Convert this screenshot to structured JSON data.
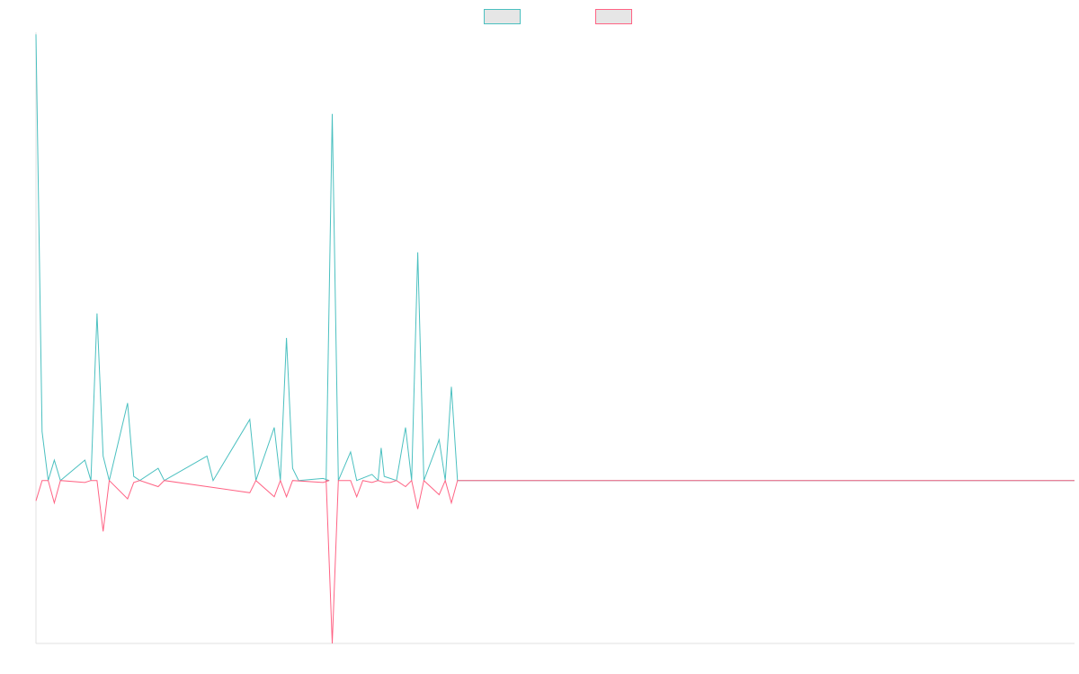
{
  "chart_data": {
    "type": "line",
    "title": "",
    "xlabel": "",
    "ylabel": "",
    "grid": false,
    "legend_placement": "top-center",
    "xlim": [
      0,
      170
    ],
    "ylim": [
      -0.4,
      1.1
    ],
    "colors": {
      "axis": "#e0e0e0",
      "swatch_fill": "#e6e6e6"
    },
    "series": [
      {
        "color": "#4bc0c0",
        "points": [
          [
            0,
            1.095
          ],
          [
            1,
            0.12
          ],
          [
            2,
            0
          ],
          [
            3,
            0.05
          ],
          [
            4,
            0
          ],
          [
            8,
            0.05
          ],
          [
            9,
            0
          ],
          [
            10,
            0.41
          ],
          [
            11,
            0.06
          ],
          [
            12,
            0
          ],
          [
            15,
            0.19
          ],
          [
            16,
            0.01
          ],
          [
            17,
            0
          ],
          [
            20,
            0.03
          ],
          [
            21,
            0
          ],
          [
            28,
            0.06
          ],
          [
            29,
            0
          ],
          [
            35,
            0.15
          ],
          [
            36,
            0
          ],
          [
            39,
            0.13
          ],
          [
            40,
            0
          ],
          [
            41,
            0.35
          ],
          [
            42,
            0.03
          ],
          [
            43,
            0
          ],
          [
            47,
            0.005
          ],
          [
            48,
            0
          ],
          [
            47.5,
            0
          ],
          [
            48.5,
            0.9
          ],
          [
            49.5,
            0
          ],
          [
            51.5,
            0.07
          ],
          [
            52.5,
            0
          ],
          [
            55,
            0.015
          ],
          [
            56,
            0
          ],
          [
            56.5,
            0.08
          ],
          [
            57,
            0.01
          ],
          [
            58,
            0.005
          ],
          [
            59,
            0
          ],
          [
            60.5,
            0.13
          ],
          [
            61.5,
            0
          ],
          [
            62.5,
            0.56
          ],
          [
            63.5,
            0
          ],
          [
            66,
            0.1
          ],
          [
            67,
            0
          ],
          [
            68,
            0.23
          ],
          [
            69,
            0
          ],
          [
            170,
            0
          ]
        ]
      },
      {
        "color": "#ff6384",
        "points": [
          [
            0,
            -0.05
          ],
          [
            1,
            0
          ],
          [
            2,
            0
          ],
          [
            3,
            -0.055
          ],
          [
            4,
            0
          ],
          [
            8,
            -0.005
          ],
          [
            9,
            0
          ],
          [
            10,
            0
          ],
          [
            11,
            -0.125
          ],
          [
            12,
            0
          ],
          [
            15,
            -0.045
          ],
          [
            16,
            -0.005
          ],
          [
            17,
            0
          ],
          [
            20,
            -0.015
          ],
          [
            21,
            0
          ],
          [
            35,
            -0.03
          ],
          [
            36,
            0
          ],
          [
            39,
            -0.04
          ],
          [
            40,
            0
          ],
          [
            41,
            -0.04
          ],
          [
            42,
            0
          ],
          [
            47,
            -0.005
          ],
          [
            48,
            0
          ],
          [
            47.5,
            0
          ],
          [
            48.5,
            -0.4
          ],
          [
            49.5,
            0
          ],
          [
            51.5,
            0
          ],
          [
            52.5,
            -0.04
          ],
          [
            53.5,
            0
          ],
          [
            55,
            -0.005
          ],
          [
            56,
            0
          ],
          [
            57,
            -0.005
          ],
          [
            58,
            -0.005
          ],
          [
            59,
            0
          ],
          [
            60.5,
            -0.015
          ],
          [
            61.5,
            0
          ],
          [
            62.5,
            -0.07
          ],
          [
            63.5,
            0
          ],
          [
            66,
            -0.035
          ],
          [
            67,
            0
          ],
          [
            68,
            -0.055
          ],
          [
            69,
            0
          ],
          [
            170,
            0
          ]
        ]
      }
    ]
  }
}
